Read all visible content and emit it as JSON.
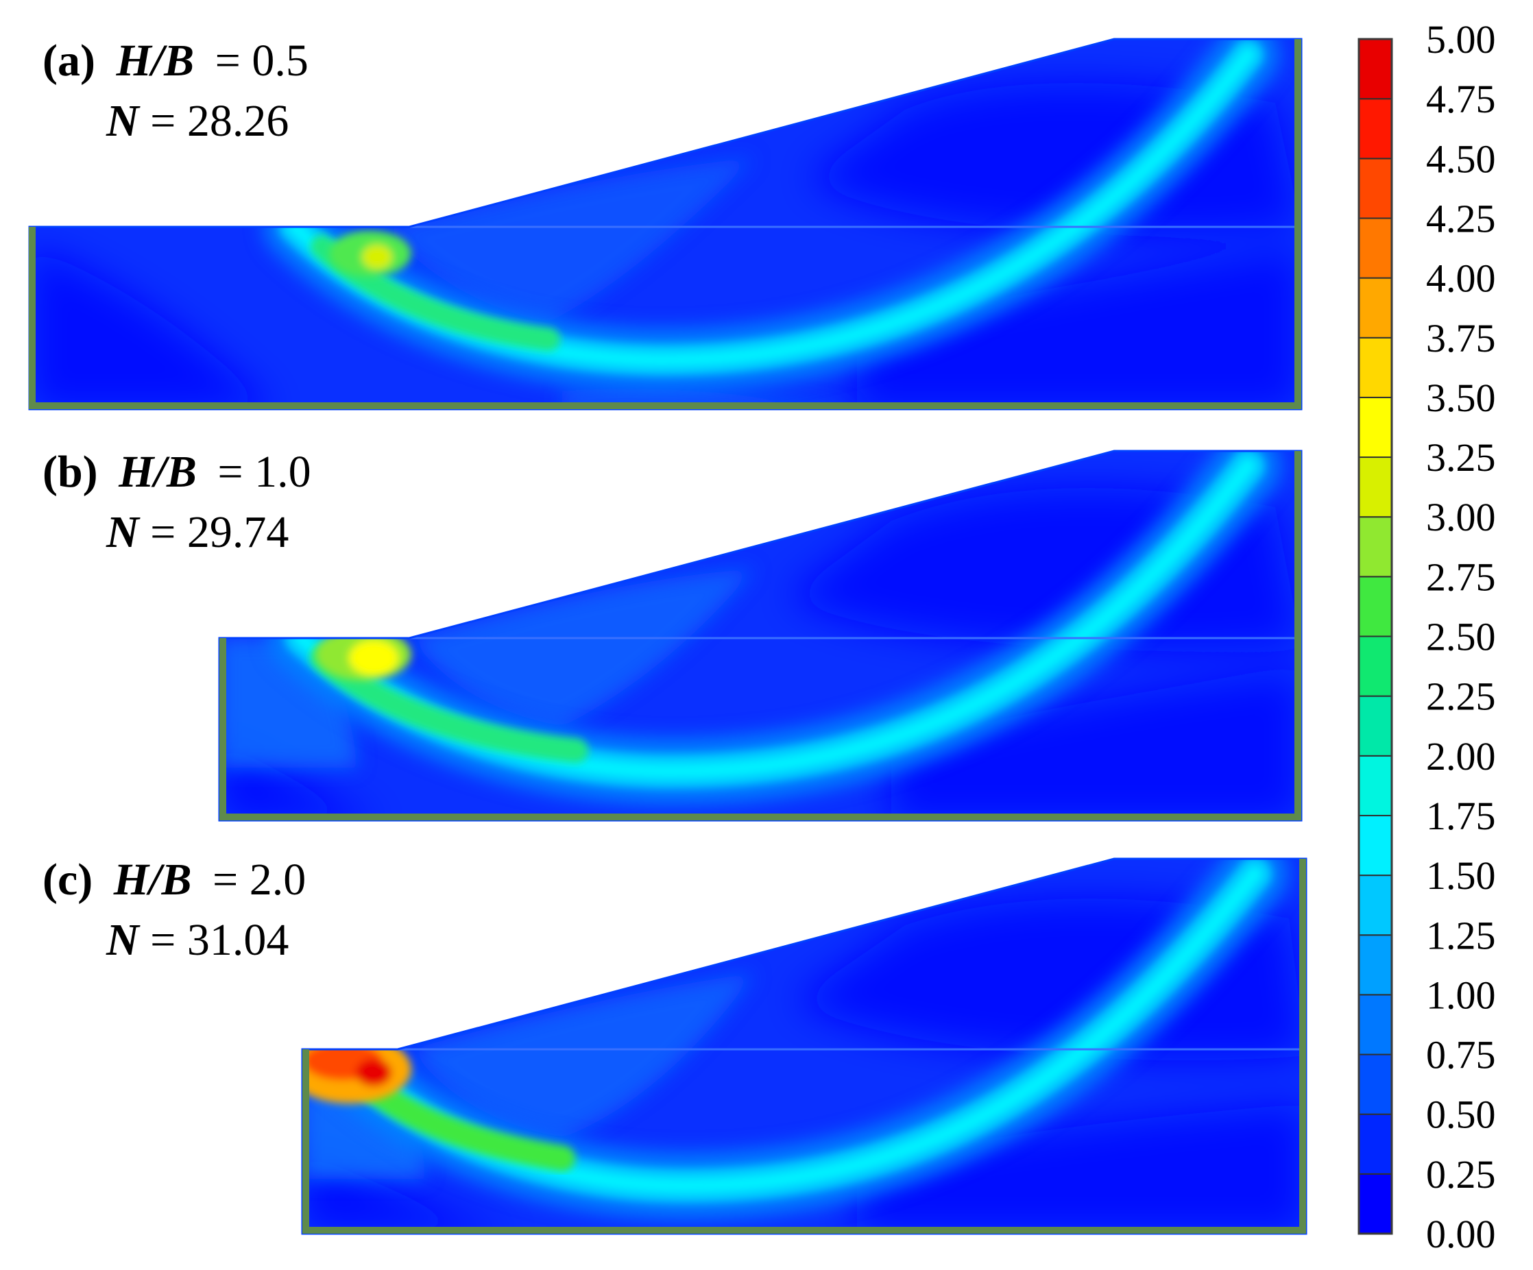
{
  "panels": [
    {
      "id": "a",
      "tag": "(a)",
      "ratio_symbol": "H/B",
      "ratio_value": "0.5",
      "n_symbol": "N",
      "n_value": "28.26",
      "h_over_b": 0.5,
      "N": 28.26
    },
    {
      "id": "b",
      "tag": "(b)",
      "ratio_symbol": "H/B",
      "ratio_value": "1.0",
      "n_symbol": "N",
      "n_value": "29.74",
      "h_over_b": 1.0,
      "N": 29.74
    },
    {
      "id": "c",
      "tag": "(c)",
      "ratio_symbol": "H/B",
      "ratio_value": "2.0",
      "n_symbol": "N",
      "n_value": "31.04",
      "h_over_b": 2.0,
      "N": 31.04
    }
  ],
  "colorbar": {
    "min": 0.0,
    "max": 5.0,
    "step": 0.25,
    "tick_labels": [
      "5.00",
      "4.75",
      "4.50",
      "4.25",
      "4.00",
      "3.75",
      "3.50",
      "3.25",
      "3.00",
      "2.75",
      "2.50",
      "2.25",
      "2.00",
      "1.75",
      "1.50",
      "1.25",
      "1.00",
      "0.75",
      "0.50",
      "0.25",
      "0.00"
    ],
    "colors": [
      "#0000ff",
      "#0026ff",
      "#0050ff",
      "#0078ff",
      "#00a0ff",
      "#00c8ff",
      "#00f0ff",
      "#00f5e0",
      "#00e8a8",
      "#10e870",
      "#40e840",
      "#90e830",
      "#d8f000",
      "#ffff00",
      "#ffd800",
      "#ffa800",
      "#ff7800",
      "#ff4800",
      "#ff1800",
      "#e80000"
    ]
  },
  "style": {
    "boundary_color": "#5e8a4c",
    "outline_color": "#0040ff",
    "band_dark_color": "#0010ff",
    "background_color": "#0a30ff"
  }
}
